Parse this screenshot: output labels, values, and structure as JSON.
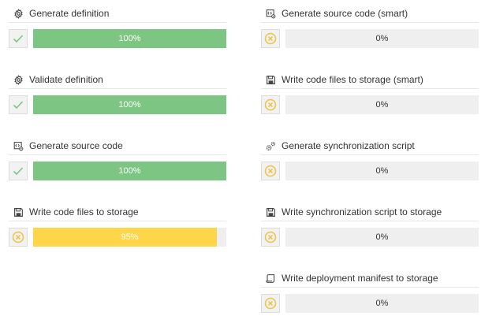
{
  "colors": {
    "success": "#7dc582",
    "in_progress": "#ffd54a",
    "track": "#efefef",
    "pending_icon": "#f0c040"
  },
  "tasks": [
    {
      "label": "Generate definition",
      "icon": "gear-icon",
      "status": "done",
      "progress": 1.0,
      "percent_text": "100%"
    },
    {
      "label": "Validate definition",
      "icon": "gear-icon",
      "status": "done",
      "progress": 1.0,
      "percent_text": "100%"
    },
    {
      "label": "Generate source code",
      "icon": "code-gear-icon",
      "status": "done",
      "progress": 1.0,
      "percent_text": "100%"
    },
    {
      "label": "Write code files to storage",
      "icon": "save-icon",
      "status": "running",
      "progress": 0.95,
      "percent_text": "95%"
    },
    {
      "label": "Generate source code (smart)",
      "icon": "code-gear-icon",
      "status": "pending",
      "progress": 0,
      "percent_text": "0%"
    },
    {
      "label": "Write code files to storage (smart)",
      "icon": "save-icon",
      "status": "pending",
      "progress": 0,
      "percent_text": "0%"
    },
    {
      "label": "Generate synchronization script",
      "icon": "gears-icon",
      "status": "pending",
      "progress": 0,
      "percent_text": "0%"
    },
    {
      "label": "Write synchronization script to storage",
      "icon": "save-icon",
      "status": "pending",
      "progress": 0,
      "percent_text": "0%"
    },
    {
      "label": "Write deployment manifest to storage",
      "icon": "scroll-icon",
      "status": "pending",
      "progress": 0,
      "percent_text": "0%"
    }
  ]
}
